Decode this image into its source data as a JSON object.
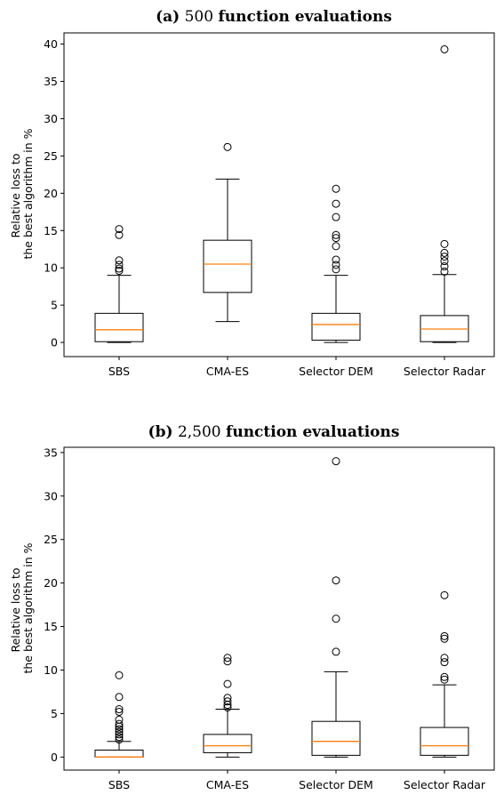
{
  "chart_data": [
    {
      "type": "box",
      "title_prefix": "(a)",
      "title_number": "500",
      "title_suffix": "function evaluations",
      "ylabel_line1": "Relative loss to",
      "ylabel_line2": "the best algorithm in %",
      "categories": [
        "SBS",
        "CMA-ES",
        "Selector DEM",
        "Selector Radar"
      ],
      "yticks": [
        "0",
        "5",
        "10",
        "15",
        "20",
        "25",
        "30",
        "35",
        "40"
      ],
      "ylim": [
        -1.9,
        41.5
      ],
      "boxes": [
        {
          "whislo": 0.0,
          "q1": 0.1,
          "med": 1.7,
          "q3": 3.9,
          "whishi": 9.0,
          "fliers": [
            9.6,
            9.9,
            10.4,
            11.0,
            14.4,
            15.2
          ]
        },
        {
          "whislo": 2.8,
          "q1": 6.7,
          "med": 10.5,
          "q3": 13.7,
          "whishi": 21.9,
          "fliers": [
            26.2
          ]
        },
        {
          "whislo": 0.0,
          "q1": 0.3,
          "med": 2.4,
          "q3": 3.9,
          "whishi": 9.0,
          "fliers": [
            9.8,
            10.4,
            11.1,
            12.9,
            14.0,
            14.4,
            16.8,
            18.6,
            20.6
          ]
        },
        {
          "whislo": 0.0,
          "q1": 0.1,
          "med": 1.8,
          "q3": 3.6,
          "whishi": 9.1,
          "fliers": [
            9.5,
            10.2,
            10.9,
            11.5,
            12.0,
            13.2,
            39.3
          ]
        }
      ]
    },
    {
      "type": "box",
      "title_prefix": "(b)",
      "title_number": "2,500",
      "title_suffix": "function evaluations",
      "ylabel_line1": "Relative loss to",
      "ylabel_line2": "the best algorithm in %",
      "categories": [
        "SBS",
        "CMA-ES",
        "Selector DEM",
        "Selector Radar"
      ],
      "yticks": [
        "0",
        "5",
        "10",
        "15",
        "20",
        "25",
        "30",
        "35"
      ],
      "ylim": [
        -1.5,
        35.6
      ],
      "boxes": [
        {
          "whislo": 0.0,
          "q1": 0.0,
          "med": 0.0,
          "q3": 0.8,
          "whishi": 1.8,
          "fliers": [
            2.0,
            2.3,
            2.6,
            2.9,
            3.2,
            3.5,
            3.8,
            4.3,
            5.2,
            5.5,
            6.9,
            9.4
          ]
        },
        {
          "whislo": 0.0,
          "q1": 0.5,
          "med": 1.3,
          "q3": 2.6,
          "whishi": 5.5,
          "fliers": [
            5.7,
            6.0,
            6.4,
            6.8,
            8.4,
            11.0,
            11.4
          ]
        },
        {
          "whislo": 0.0,
          "q1": 0.2,
          "med": 1.8,
          "q3": 4.1,
          "whishi": 9.8,
          "fliers": [
            12.1,
            15.9,
            20.3,
            34.0
          ]
        },
        {
          "whislo": 0.0,
          "q1": 0.2,
          "med": 1.3,
          "q3": 3.4,
          "whishi": 8.3,
          "fliers": [
            8.9,
            9.2,
            10.9,
            11.4,
            13.6,
            13.9,
            18.6
          ]
        }
      ]
    }
  ],
  "colors": {
    "median": "#ff7f0e",
    "box": "#000000",
    "flier": "#000000"
  }
}
